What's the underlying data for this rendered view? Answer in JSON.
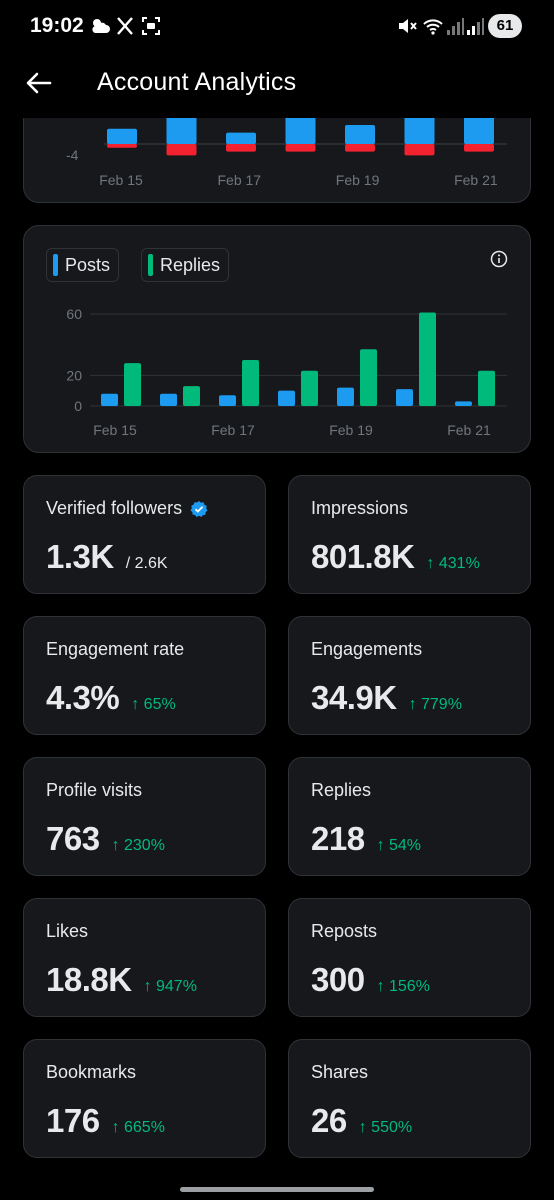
{
  "status_bar": {
    "time": "19:02",
    "battery": "61",
    "icons": [
      "weather-cloud-icon",
      "x-logo-icon",
      "screenshot-icon",
      "mute-icon",
      "wifi-icon",
      "signal-icon",
      "signal-icon-2"
    ]
  },
  "header": {
    "title": "Account Analytics",
    "back_icon": "arrow-left-icon"
  },
  "chart_data": [
    {
      "type": "bar",
      "categories": [
        "Feb 15",
        "Feb 16",
        "Feb 17",
        "Feb 18",
        "Feb 19",
        "Feb 20",
        "Feb 21"
      ],
      "x_tick_labels": [
        "Feb 15",
        "Feb 17",
        "Feb 19",
        "Feb 21"
      ],
      "y_tick_labels": [
        "-4"
      ],
      "series": [
        {
          "color": "#1d9bf0",
          "values": [
            4,
            8,
            3,
            8,
            5,
            8,
            8
          ]
        },
        {
          "color": "#f4212e",
          "values": [
            -1,
            -3,
            -2,
            -2,
            -2,
            -3,
            -2
          ]
        }
      ],
      "grid": true
    },
    {
      "type": "bar",
      "categories": [
        "Feb 15",
        "Feb 16",
        "Feb 17",
        "Feb 18",
        "Feb 19",
        "Feb 20",
        "Feb 21"
      ],
      "x_tick_labels": [
        "Feb 15",
        "Feb 17",
        "Feb 19",
        "Feb 21"
      ],
      "y_ticks": [
        0,
        20,
        60
      ],
      "ylim": [
        0,
        60
      ],
      "series": [
        {
          "name": "Posts",
          "color": "#1d9bf0",
          "values": [
            8,
            8,
            7,
            10,
            12,
            11,
            3
          ]
        },
        {
          "name": "Replies",
          "color": "#00ba7c",
          "values": [
            28,
            13,
            30,
            23,
            37,
            61,
            23
          ]
        }
      ],
      "legend": "top-left",
      "grid": true
    }
  ],
  "stats": [
    {
      "label": "Verified followers",
      "value": "1.3K",
      "sub": "/ 2.6K",
      "delta": "",
      "verified_icon": true
    },
    {
      "label": "Impressions",
      "value": "801.8K",
      "sub": "",
      "delta": "↑ 431%"
    },
    {
      "label": "Engagement rate",
      "value": "4.3%",
      "sub": "",
      "delta": "↑ 65%"
    },
    {
      "label": "Engagements",
      "value": "34.9K",
      "sub": "",
      "delta": "↑ 779%"
    },
    {
      "label": "Profile visits",
      "value": "763",
      "sub": "",
      "delta": "↑ 230%"
    },
    {
      "label": "Replies",
      "value": "218",
      "sub": "",
      "delta": "↑ 54%"
    },
    {
      "label": "Likes",
      "value": "18.8K",
      "sub": "",
      "delta": "↑ 947%"
    },
    {
      "label": "Reposts",
      "value": "300",
      "sub": "",
      "delta": "↑ 156%"
    },
    {
      "label": "Bookmarks",
      "value": "176",
      "sub": "",
      "delta": "↑ 665%"
    },
    {
      "label": "Shares",
      "value": "26",
      "sub": "",
      "delta": "↑ 550%"
    }
  ]
}
